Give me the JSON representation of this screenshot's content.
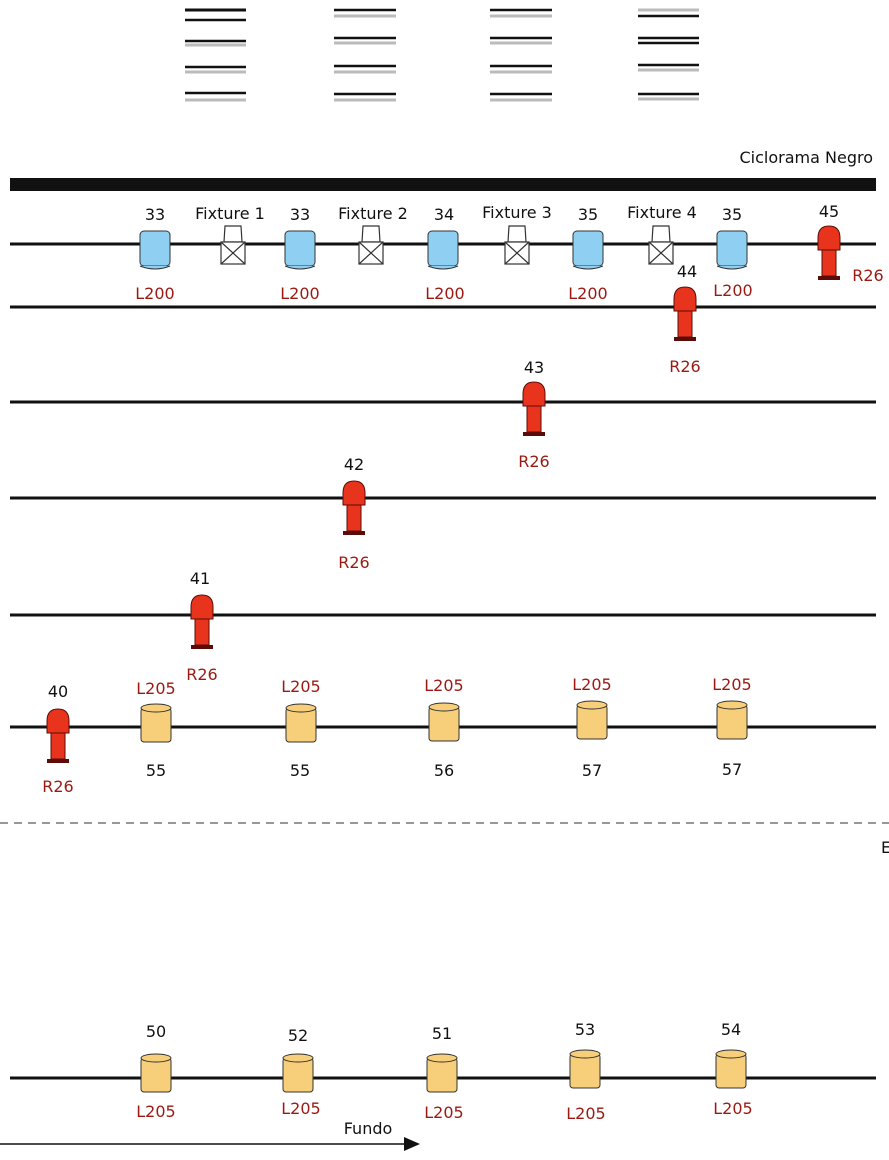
{
  "colors": {
    "gel_label": "#9a1a12",
    "cyc_fill": "#8fd0f2",
    "profile_fill": "#e8341c",
    "fresnel_fill": "#f7cf7b",
    "batten": "#111111"
  },
  "cyclorama_label": "Ciclorama Negro",
  "fundo_label": "Fundo",
  "edge_label": "E",
  "cyc_lights": [
    {
      "number": "33",
      "gel": "L200",
      "icon": "cyc-light-icon"
    },
    {
      "number": "33",
      "gel": "L200",
      "icon": "cyc-light-icon"
    },
    {
      "number": "34",
      "gel": "L200",
      "icon": "cyc-light-icon"
    },
    {
      "number": "35",
      "gel": "L200",
      "icon": "cyc-light-icon"
    },
    {
      "number": "35",
      "gel": "L200",
      "icon": "cyc-light-icon"
    }
  ],
  "fixtures": [
    {
      "label": "Fixture 1",
      "icon": "fixture-icon"
    },
    {
      "label": "Fixture 2",
      "icon": "fixture-icon"
    },
    {
      "label": "Fixture 3",
      "icon": "fixture-icon"
    },
    {
      "label": "Fixture 4",
      "icon": "fixture-icon"
    }
  ],
  "profile_lights": [
    {
      "number": "45",
      "gel": "R26",
      "icon": "profile-spot-icon"
    },
    {
      "number": "44",
      "gel": "R26",
      "icon": "profile-spot-icon"
    },
    {
      "number": "43",
      "gel": "R26",
      "icon": "profile-spot-icon"
    },
    {
      "number": "42",
      "gel": "R26",
      "icon": "profile-spot-icon"
    },
    {
      "number": "41",
      "gel": "R26",
      "icon": "profile-spot-icon"
    },
    {
      "number": "40",
      "gel": "R26",
      "icon": "profile-spot-icon"
    }
  ],
  "front_fresnels": [
    {
      "number": "55",
      "gel": "L205",
      "icon": "fresnel-icon"
    },
    {
      "number": "55",
      "gel": "L205",
      "icon": "fresnel-icon"
    },
    {
      "number": "56",
      "gel": "L205",
      "icon": "fresnel-icon"
    },
    {
      "number": "57",
      "gel": "L205",
      "icon": "fresnel-icon"
    },
    {
      "number": "57",
      "gel": "L205",
      "icon": "fresnel-icon"
    }
  ],
  "back_fresnels": [
    {
      "number": "50",
      "gel": "L205",
      "icon": "fresnel-icon"
    },
    {
      "number": "52",
      "gel": "L205",
      "icon": "fresnel-icon"
    },
    {
      "number": "51",
      "gel": "L205",
      "icon": "fresnel-icon"
    },
    {
      "number": "53",
      "gel": "L205",
      "icon": "fresnel-icon"
    },
    {
      "number": "54",
      "gel": "L205",
      "icon": "fresnel-icon"
    }
  ]
}
